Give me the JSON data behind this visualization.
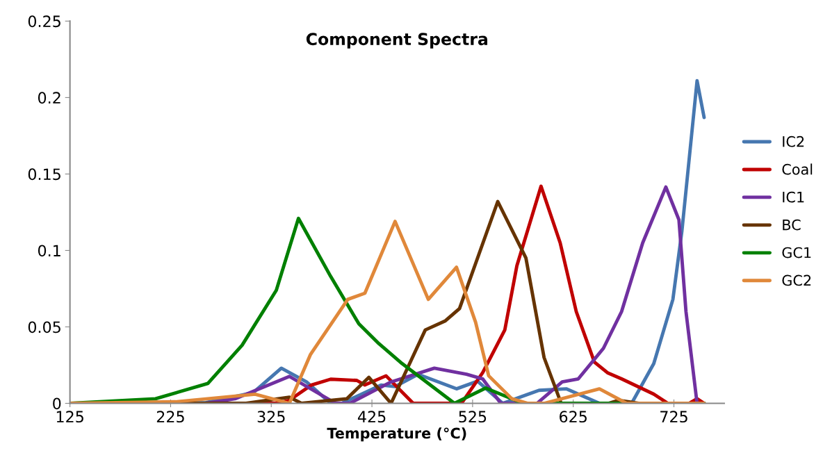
{
  "chart_data": {
    "type": "line",
    "title": "Component Spectra",
    "xlabel": "Temperature (°C)",
    "xlim": [
      125,
      775
    ],
    "xticks": [
      125,
      225,
      325,
      425,
      525,
      625,
      725
    ],
    "ylim": [
      0,
      0.25
    ],
    "yticks": [
      0,
      0.05,
      0.1,
      0.15,
      0.2,
      0.25
    ],
    "grid": false,
    "legend": "right",
    "marker": "none",
    "line_style": "solid",
    "series": [
      {
        "name": "IC2",
        "color": "#4677b0",
        "x": [
          125,
          260,
          307,
          335,
          360,
          384,
          395,
          434,
          448,
          471,
          509,
          530,
          555,
          591,
          618,
          651,
          683,
          705,
          724,
          733,
          748,
          755
        ],
        "values": [
          0,
          0.0005,
          0.007,
          0.023,
          0.014,
          0,
          0,
          0.012,
          0.011,
          0.019,
          0.0095,
          0.0145,
          0,
          0.0085,
          0.0095,
          0,
          0,
          0.026,
          0.068,
          0.113,
          0.211,
          0.187
        ]
      },
      {
        "name": "Coal",
        "color": "#c00000",
        "x": [
          125,
          330,
          343,
          365,
          384,
          410,
          418,
          439,
          466,
          514,
          535,
          557,
          569,
          593,
          612,
          628,
          646,
          659,
          673,
          705,
          719,
          740,
          748,
          755
        ],
        "values": [
          0,
          0,
          0.002,
          0.012,
          0.0158,
          0.015,
          0.012,
          0.018,
          0,
          0,
          0.02,
          0.048,
          0.09,
          0.142,
          0.105,
          0.06,
          0.027,
          0.02,
          0.016,
          0.006,
          0,
          0,
          0.003,
          0
        ]
      },
      {
        "name": "IC1",
        "color": "#7030a0",
        "x": [
          125,
          260,
          289,
          343,
          389,
          403,
          444,
          487,
          519,
          535,
          553,
          589,
          614,
          630,
          655,
          673,
          694,
          717,
          730,
          737,
          748,
          755
        ],
        "values": [
          0,
          0,
          0.003,
          0.0176,
          0,
          0,
          0.014,
          0.023,
          0.019,
          0.016,
          0,
          0,
          0.014,
          0.016,
          0.036,
          0.06,
          0.105,
          0.1415,
          0.12,
          0.06,
          0,
          0
        ]
      },
      {
        "name": "BC",
        "color": "#663300",
        "x": [
          125,
          300,
          343,
          355,
          400,
          422,
          444,
          478,
          498,
          512,
          550,
          578,
          596,
          613,
          660,
          670,
          690,
          755
        ],
        "values": [
          0,
          0,
          0.004,
          0,
          0.003,
          0.017,
          0,
          0.048,
          0.054,
          0.062,
          0.132,
          0.095,
          0.03,
          0,
          0,
          0.002,
          0,
          0
        ]
      },
      {
        "name": "GC1",
        "color": "#008000",
        "x": [
          125,
          210,
          262,
          296,
          330,
          352,
          384,
          412,
          432,
          455,
          507,
          538,
          575,
          755
        ],
        "values": [
          0,
          0.003,
          0.013,
          0.038,
          0.074,
          0.121,
          0.083,
          0.052,
          0.039,
          0.026,
          0,
          0.01,
          0,
          0
        ]
      },
      {
        "name": "GC2",
        "color": "#e0883a",
        "x": [
          125,
          230,
          309,
          343,
          364,
          401,
          418,
          448,
          481,
          509,
          528,
          541,
          564,
          580,
          596,
          651,
          678,
          755
        ],
        "values": [
          0,
          0.001,
          0.006,
          0,
          0.032,
          0.068,
          0.072,
          0.119,
          0.068,
          0.089,
          0.053,
          0.018,
          0.003,
          0,
          0,
          0.0095,
          0,
          0
        ]
      }
    ]
  }
}
